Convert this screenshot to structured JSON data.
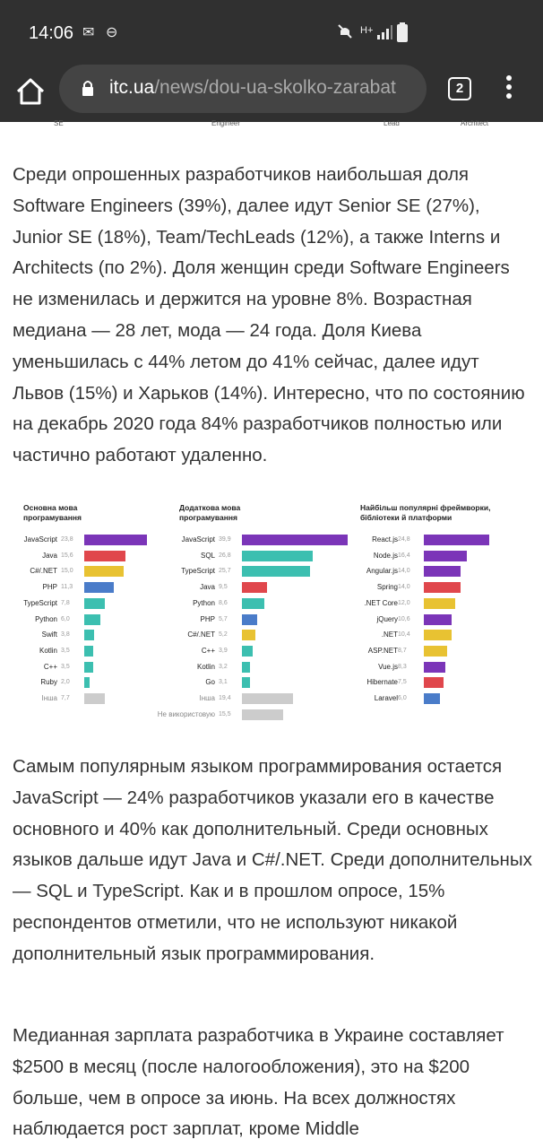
{
  "status": {
    "time": "14:06"
  },
  "browser": {
    "url_domain": "itc.ua",
    "url_path": "/news/dou-ua-skolko-zarabat",
    "tab_count": "2"
  },
  "cropped_labels": [
    "SE",
    "Engineer",
    "Lead",
    "Architect"
  ],
  "paragraphs": [
    "Среди опрошенных разработчиков наибольшая доля Software Engineers (39%), далее идут Senior SE (27%), Junior SE (18%), Team/TechLeads (12%), а также Interns и Architects (по 2%). Доля женщин среди Software Engineers не изменилась и держится на уровне 8%. Возрастная медиана — 28 лет, мода — 24 года. Доля Киева уменьшилась с 44% летом до 41% сейчас, далее идут Львов (15%) и Харьков (14%). Интересно, что по состоянию на декабрь 2020 года 84% разработчиков полностью или частично работают удаленно.",
    "Самым популярным языком программирования остается JavaScript — 24% разработчиков указали его в качестве основного и 40% как дополнительный. Среди основных языков дальше идут Java и C#/.NET. Среди дополнительных — SQL и TypeScript. Как и в прошлом опросе, 15% респондентов отметили, что не используют никакой дополнительный язык программирования.",
    "Медианная зарплата разработчика в Украине составляет $2500 в месяц (после налогообложения), это на $200 больше, чем в опросе за июнь. На всех должностях наблюдается рост зарплат, кроме Middle"
  ],
  "colors": {
    "purple": "#7b35b8",
    "red": "#e0474c",
    "yellow": "#e8c232",
    "blue": "#4a7cc9",
    "teal": "#3cbfb0",
    "gray": "#cccccc"
  },
  "chart_data": [
    {
      "type": "bar",
      "title": "Основна мова програмування",
      "categories": [
        "JavaScript",
        "Java",
        "C#/.NET",
        "PHP",
        "TypeScript",
        "Python",
        "Swift",
        "Kotlin",
        "C++",
        "Ruby",
        "Інша"
      ],
      "values": [
        23.8,
        15.6,
        15.0,
        11.3,
        7.8,
        6.0,
        3.8,
        3.5,
        3.5,
        2.0,
        7.7
      ],
      "labels": [
        "23,8",
        "15,6",
        "15,0",
        "11,3",
        "7,8",
        "6,0",
        "3,8",
        "3,5",
        "3,5",
        "2,0",
        "7,7"
      ],
      "colors": [
        "purple",
        "red",
        "yellow",
        "blue",
        "teal",
        "teal",
        "teal",
        "teal",
        "teal",
        "teal",
        "gray"
      ]
    },
    {
      "type": "bar",
      "title": "Додаткова мова програмування",
      "categories": [
        "JavaScript",
        "SQL",
        "TypeScript",
        "Java",
        "Python",
        "PHP",
        "C#/.NET",
        "C++",
        "Kotlin",
        "Go",
        "Інша",
        "Не використовую"
      ],
      "values": [
        39.9,
        26.8,
        25.7,
        9.5,
        8.6,
        5.7,
        5.2,
        3.9,
        3.2,
        3.1,
        19.4,
        15.5
      ],
      "labels": [
        "39,9",
        "26,8",
        "25,7",
        "9,5",
        "8,6",
        "5,7",
        "5,2",
        "3,9",
        "3,2",
        "3,1",
        "19,4",
        "15,5"
      ],
      "colors": [
        "purple",
        "teal",
        "teal",
        "red",
        "teal",
        "blue",
        "yellow",
        "teal",
        "teal",
        "teal",
        "gray",
        "gray"
      ]
    },
    {
      "type": "bar",
      "title": "Найбільш популярні фреймворки, бібліотеки й платформи",
      "categories": [
        "React.js",
        "Node.js",
        "Angular.js",
        "Spring",
        ".NET Core",
        "jQuery",
        ".NET",
        "ASP.NET",
        "Vue.js",
        "Hibernate",
        "Laravel"
      ],
      "values": [
        24.8,
        16.4,
        14.0,
        14.0,
        12.0,
        10.6,
        10.4,
        8.7,
        8.3,
        7.5,
        6.0
      ],
      "labels": [
        "24,8",
        "16,4",
        "14,0",
        "14,0",
        "12,0",
        "10,6",
        "10,4",
        "8,7",
        "8,3",
        "7,5",
        "6,0"
      ],
      "colors": [
        "purple",
        "purple",
        "purple",
        "red",
        "yellow",
        "purple",
        "yellow",
        "yellow",
        "purple",
        "red",
        "blue"
      ]
    }
  ]
}
